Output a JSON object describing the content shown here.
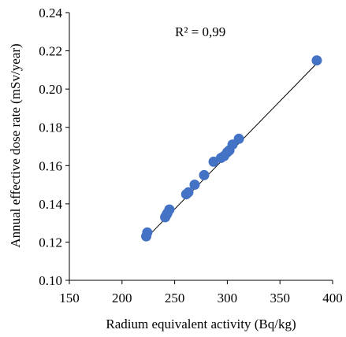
{
  "chart_data": {
    "type": "scatter",
    "title": "",
    "xlabel": "Radium equivalent activity (Bq/kg)",
    "ylabel": "Annual effective dose rate (mSv/year)",
    "xlim": [
      150,
      400
    ],
    "ylim": [
      0.1,
      0.24
    ],
    "x_ticks": [
      150,
      200,
      250,
      300,
      350,
      400
    ],
    "x_tick_labels": [
      "150",
      "200",
      "250",
      "300",
      "350",
      "400"
    ],
    "y_ticks": [
      0.1,
      0.12,
      0.14,
      0.16,
      0.18,
      0.2,
      0.22,
      0.24
    ],
    "y_tick_labels": [
      "0.10",
      "0.12",
      "0.14",
      "0.16",
      "0.18",
      "0.20",
      "0.22",
      "0.24"
    ],
    "grid": false,
    "legend": "none",
    "annotation": "R² = 0,99",
    "marker_color": "#4472C4",
    "trendline": {
      "type": "linear",
      "from": [
        223,
        0.122
      ],
      "to": [
        386,
        0.214
      ],
      "color": "#000000"
    },
    "points": [
      {
        "x": 223,
        "y": 0.123
      },
      {
        "x": 224,
        "y": 0.125
      },
      {
        "x": 241,
        "y": 0.133
      },
      {
        "x": 242,
        "y": 0.134
      },
      {
        "x": 243,
        "y": 0.135
      },
      {
        "x": 245,
        "y": 0.137
      },
      {
        "x": 261,
        "y": 0.145
      },
      {
        "x": 263,
        "y": 0.146
      },
      {
        "x": 269,
        "y": 0.15
      },
      {
        "x": 278,
        "y": 0.155
      },
      {
        "x": 287,
        "y": 0.162
      },
      {
        "x": 294,
        "y": 0.164
      },
      {
        "x": 297,
        "y": 0.165
      },
      {
        "x": 300,
        "y": 0.167
      },
      {
        "x": 302,
        "y": 0.168
      },
      {
        "x": 305,
        "y": 0.171
      },
      {
        "x": 311,
        "y": 0.174
      },
      {
        "x": 385,
        "y": 0.215
      }
    ]
  }
}
